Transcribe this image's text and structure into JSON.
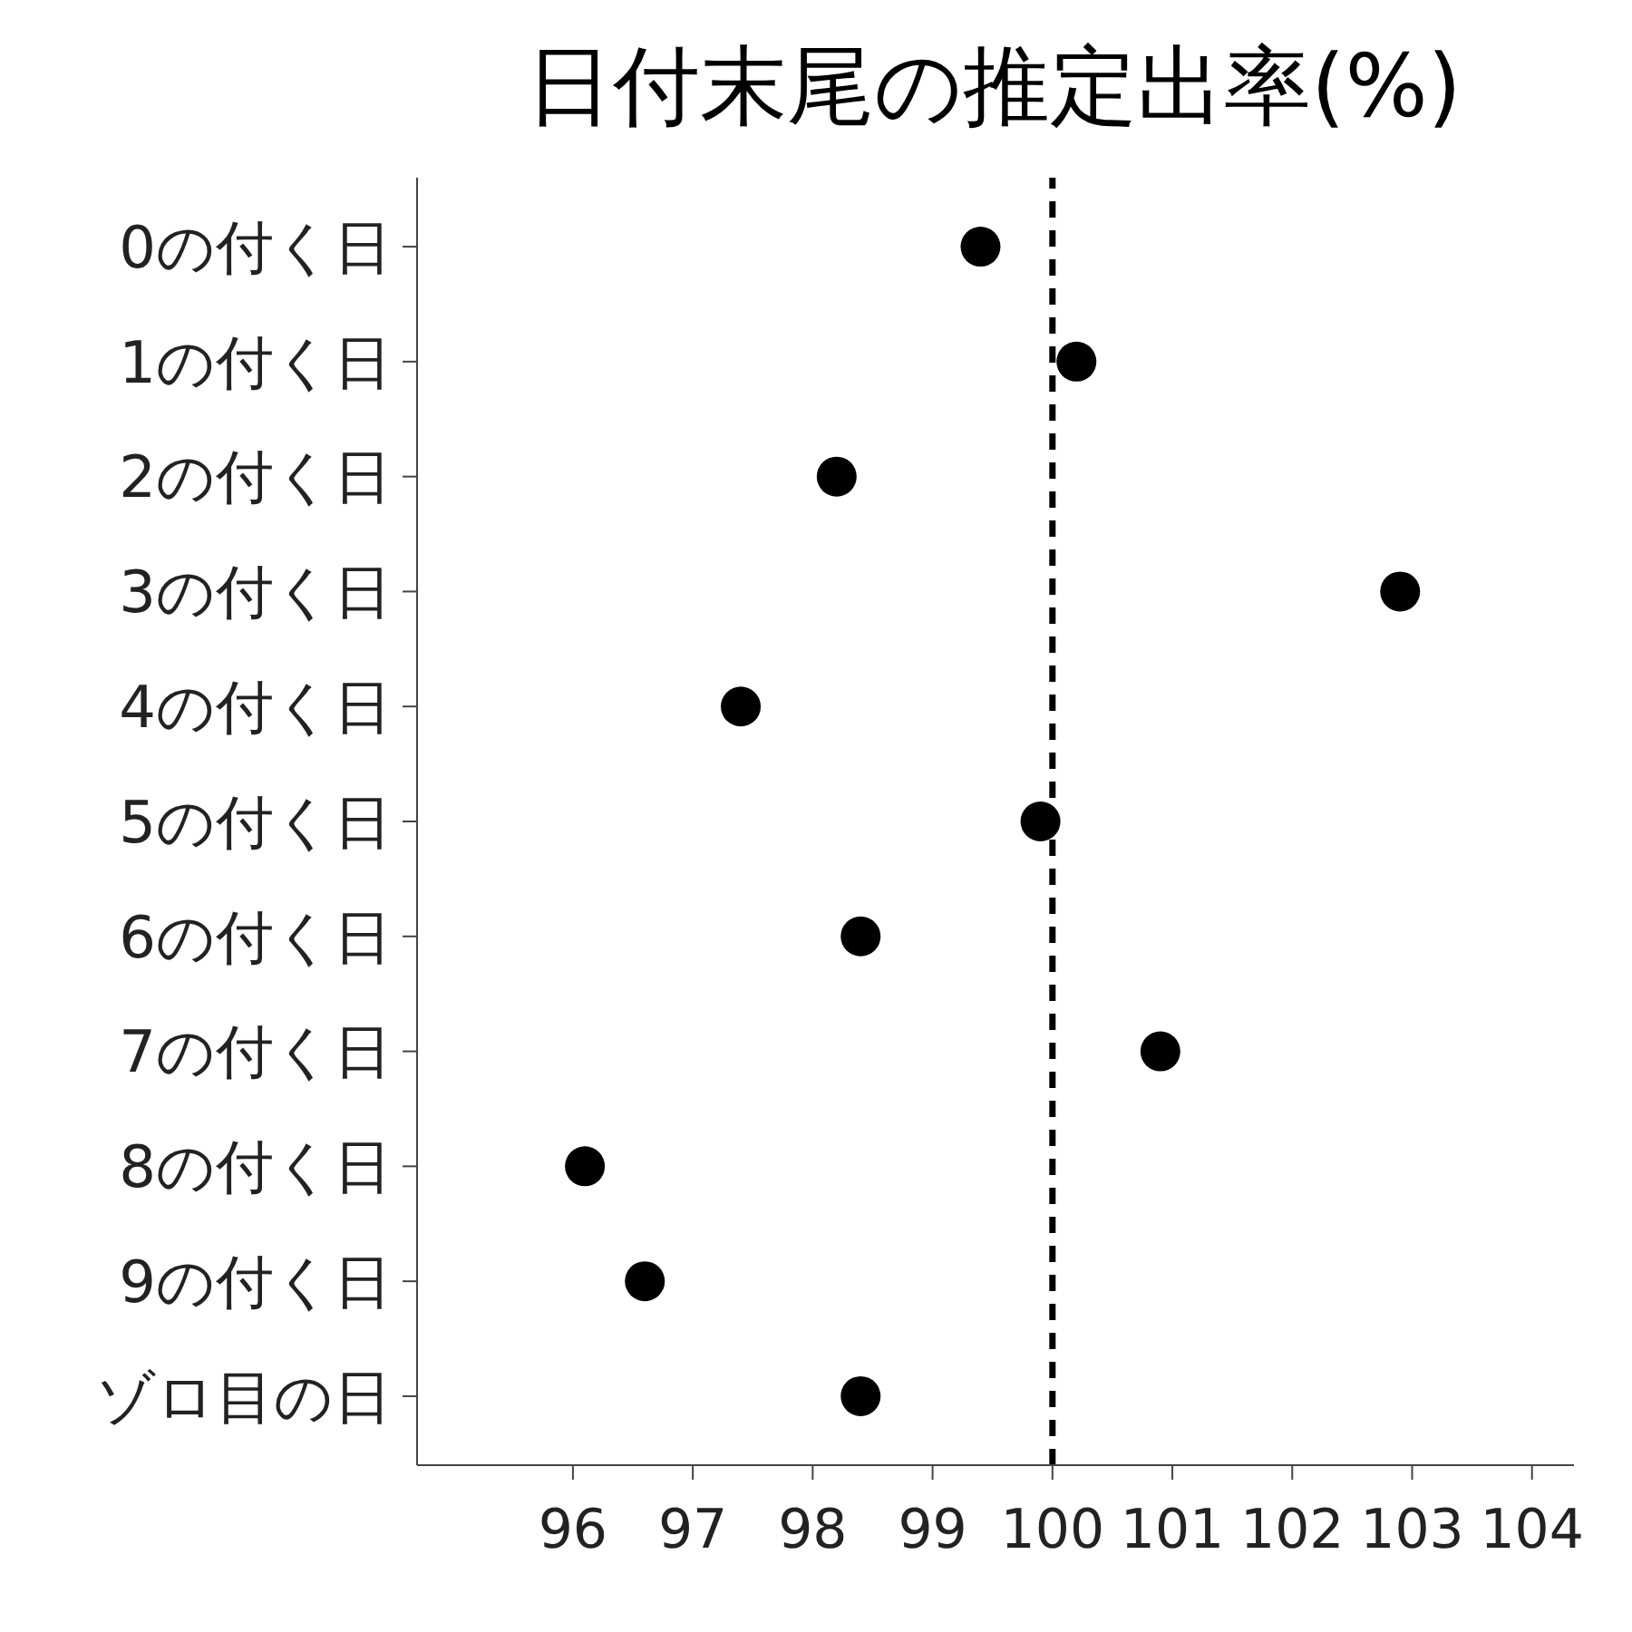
{
  "chart_data": {
    "type": "scatter",
    "title": "日付末尾の推定出率(%)",
    "categories": [
      "0の付く日",
      "1の付く日",
      "2の付く日",
      "3の付く日",
      "4の付く日",
      "5の付く日",
      "6の付く日",
      "7の付く日",
      "8の付く日",
      "9の付く日",
      "ゾロ目の日"
    ],
    "series": [
      {
        "color": "#000000",
        "values": [
          99.4,
          100.2,
          98.2,
          102.9,
          97.4,
          99.9,
          98.4,
          100.9,
          96.1,
          96.6,
          98.4
        ]
      }
    ],
    "orientation": "horizontal",
    "xlim": [
      94.7,
      104.35
    ],
    "xticks": [
      96,
      97,
      98,
      99,
      100,
      101,
      102,
      103,
      104
    ],
    "ref_lines": [
      {
        "axis": "x",
        "value": 100,
        "color": "#000000",
        "line_style": "dashed"
      }
    ],
    "marker": "circle",
    "grid": false,
    "legend": false
  }
}
